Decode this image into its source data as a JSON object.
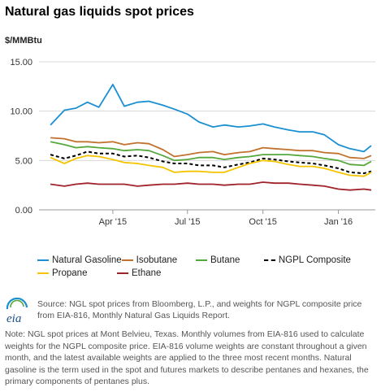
{
  "title": "Natural gas liquids spot prices",
  "unit_label": "$/MMBtu",
  "chart_data": {
    "type": "line",
    "ylim": [
      0,
      15
    ],
    "yticks": [
      "0.00",
      "5.00",
      "10.00",
      "15.00"
    ],
    "xticks": [
      "Apr '15",
      "Jul '15",
      "Oct '15",
      "Jan '16"
    ],
    "x": [
      "2015-01-15",
      "2015-02-01",
      "2015-02-15",
      "2015-03-01",
      "2015-03-15",
      "2015-04-01",
      "2015-04-15",
      "2015-05-01",
      "2015-05-15",
      "2015-06-01",
      "2015-06-15",
      "2015-07-01",
      "2015-07-15",
      "2015-08-01",
      "2015-08-15",
      "2015-09-01",
      "2015-09-15",
      "2015-10-01",
      "2015-10-15",
      "2015-11-01",
      "2015-11-15",
      "2015-12-01",
      "2015-12-15",
      "2016-01-01",
      "2016-01-15",
      "2016-02-01",
      "2016-02-10"
    ],
    "grid": "horizontal",
    "legend_position": "bottom",
    "series": [
      {
        "name": "Natural Gasoline",
        "color": "#1a8fd1",
        "values": [
          8.6,
          10.1,
          10.3,
          10.9,
          10.4,
          12.7,
          10.5,
          10.9,
          11.0,
          10.6,
          10.2,
          9.7,
          8.9,
          8.4,
          8.6,
          8.4,
          8.5,
          8.7,
          8.4,
          8.1,
          7.9,
          7.9,
          7.6,
          6.6,
          6.2,
          5.9,
          6.5
        ]
      },
      {
        "name": "Isobutane",
        "color": "#c0722e",
        "values": [
          7.3,
          7.2,
          6.9,
          6.9,
          6.8,
          6.9,
          6.6,
          6.8,
          6.7,
          6.1,
          5.4,
          5.6,
          5.8,
          5.9,
          5.6,
          5.8,
          5.9,
          6.3,
          6.2,
          6.1,
          6.0,
          6.0,
          5.8,
          5.7,
          5.3,
          5.2,
          5.5
        ]
      },
      {
        "name": "Butane",
        "color": "#56a83c",
        "values": [
          6.9,
          6.6,
          6.3,
          6.4,
          6.3,
          6.2,
          6.0,
          6.1,
          6.0,
          5.5,
          5.0,
          5.1,
          5.3,
          5.3,
          5.1,
          5.3,
          5.4,
          5.6,
          5.6,
          5.6,
          5.5,
          5.4,
          5.2,
          5.0,
          4.6,
          4.5,
          4.9
        ]
      },
      {
        "name": "NGPL Composite",
        "color": "#000000",
        "dashed": true,
        "values": [
          5.6,
          5.2,
          5.5,
          5.9,
          5.7,
          5.7,
          5.4,
          5.5,
          5.3,
          4.9,
          4.7,
          4.7,
          4.5,
          4.5,
          4.3,
          4.6,
          4.8,
          5.2,
          5.1,
          4.9,
          4.8,
          4.7,
          4.5,
          4.2,
          3.8,
          3.7,
          3.9
        ]
      },
      {
        "name": "Propane",
        "color": "#f5c400",
        "values": [
          5.3,
          4.7,
          5.2,
          5.5,
          5.4,
          5.1,
          4.8,
          4.7,
          4.5,
          4.3,
          3.8,
          3.9,
          3.9,
          3.8,
          3.8,
          4.3,
          4.7,
          5.0,
          4.9,
          4.6,
          4.4,
          4.4,
          4.2,
          3.8,
          3.5,
          3.4,
          3.8
        ]
      },
      {
        "name": "Ethane",
        "color": "#a0222a",
        "values": [
          2.6,
          2.4,
          2.6,
          2.7,
          2.6,
          2.6,
          2.6,
          2.4,
          2.5,
          2.6,
          2.6,
          2.7,
          2.6,
          2.6,
          2.5,
          2.6,
          2.6,
          2.8,
          2.7,
          2.7,
          2.6,
          2.5,
          2.4,
          2.1,
          2.0,
          2.1,
          2.0
        ]
      }
    ]
  },
  "source": "Source: NGL spot prices from Bloomberg, L.P., and weights for NGPL composite price from EIA-816, Monthly Natural Gas Liquids Report.",
  "note": "Note: NGL spot prices at Mont Belvieu, Texas. Monthly volumes from EIA-816 used to calculate weights for the NGPL composite price. EIA-816 volume weights are constant throughout a given month, and the latest available weights are applied to the three most recent months. Natural gasoline is the term used in the spot and futures markets to describe pentanes and hexanes, the primary components of pentanes plus.",
  "logo": {
    "text": "eia",
    "icon": "eia-logo-icon"
  }
}
